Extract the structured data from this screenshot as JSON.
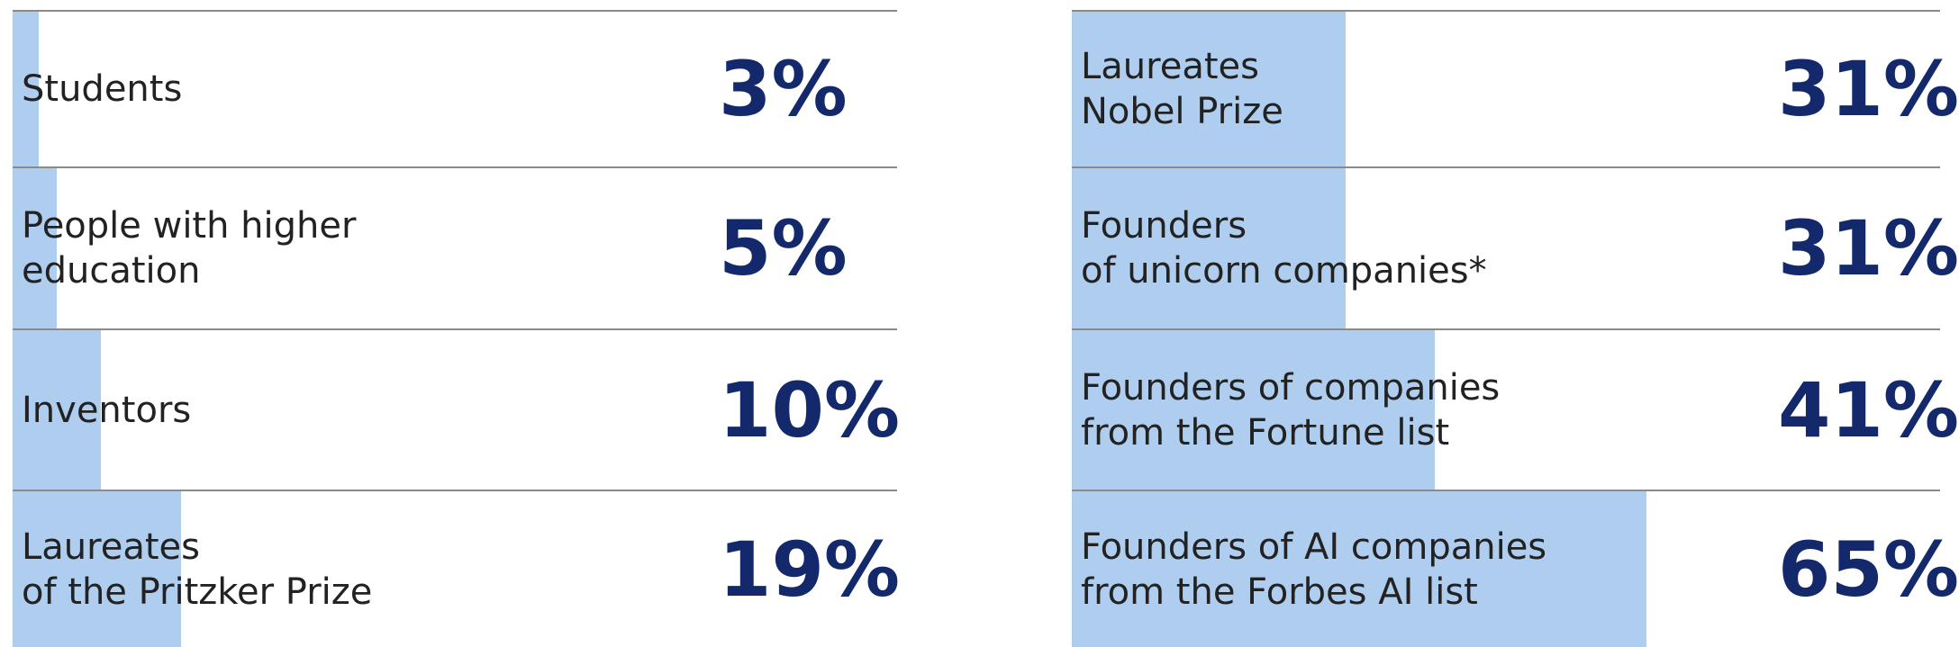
{
  "chart_data": [
    {
      "type": "bar",
      "orientation": "horizontal",
      "categories": [
        "Students",
        "People with higher\neducation",
        "Inventors",
        "Laureates\nof the Pritzker Prize"
      ],
      "values": [
        3,
        5,
        10,
        19
      ],
      "value_labels": [
        "3%",
        "5%",
        "10%",
        "19%"
      ],
      "color": "#aecdef",
      "xlim": [
        0,
        100
      ]
    },
    {
      "type": "bar",
      "orientation": "horizontal",
      "categories": [
        "Laureates\nNobel Prize",
        "Founders\nof unicorn companies*",
        "Founders of companies\nfrom the Fortune list",
        "Founders of AI companies\nfrom the Forbes AI list"
      ],
      "values": [
        31,
        31,
        41,
        65
      ],
      "value_labels": [
        "31%",
        "31%",
        "41%",
        "65%"
      ],
      "color": "#aecdef",
      "xlim": [
        0,
        100
      ]
    }
  ]
}
